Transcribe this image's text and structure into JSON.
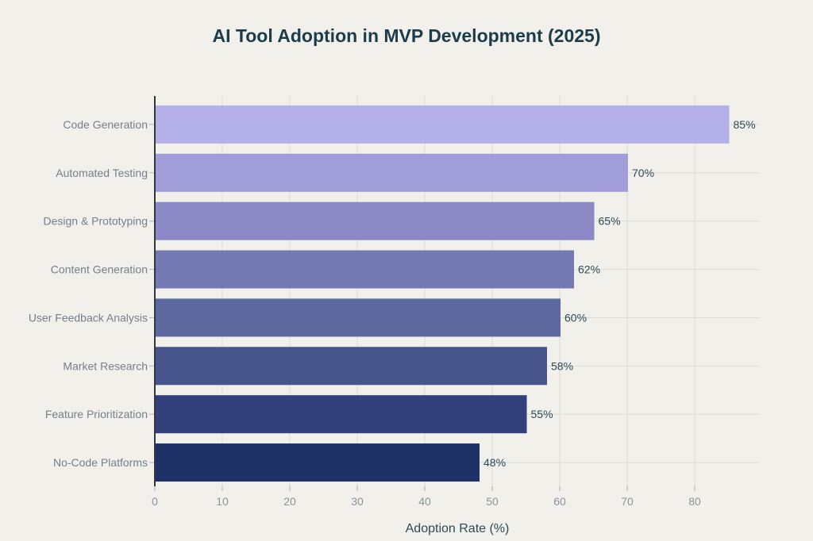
{
  "page": {
    "background": "#f1f0ea"
  },
  "chart_data": {
    "type": "bar",
    "orientation": "horizontal",
    "title": "AI Tool Adoption in MVP Development (2025)",
    "xlabel": "Adoption Rate (%)",
    "ylabel": "",
    "categories": [
      "Code Generation",
      "Automated Testing",
      "Design & Prototyping",
      "Content Generation",
      "User Feedback Analysis",
      "Market Research",
      "Feature Prioritization",
      "No-Code Platforms"
    ],
    "values": [
      85,
      70,
      65,
      62,
      60,
      58,
      55,
      48
    ],
    "value_labels": [
      "85%",
      "70%",
      "65%",
      "62%",
      "60%",
      "58%",
      "55%",
      "48%"
    ],
    "x_ticks": [
      0,
      10,
      20,
      30,
      40,
      50,
      60,
      70,
      80
    ],
    "xlim": [
      0,
      89.6
    ],
    "grid": true,
    "legend": false,
    "bar_colors": [
      "#b4b1e8",
      "#a09dd9",
      "#8b8ac7",
      "#7379b2",
      "#5c689e",
      "#47558c",
      "#32417b",
      "#1e3166"
    ],
    "colors": {
      "background": "#f1f0ea",
      "title_text": "#1c3c4c",
      "axis_title_text": "#2d4a58",
      "value_label_text": "#2d4a58",
      "category_label_text": "#74808a",
      "tick_label_text": "#8d939a",
      "gridline": "#dddbd3",
      "axis_line": "#33363d",
      "tick_mark": "#aab0b5"
    }
  }
}
